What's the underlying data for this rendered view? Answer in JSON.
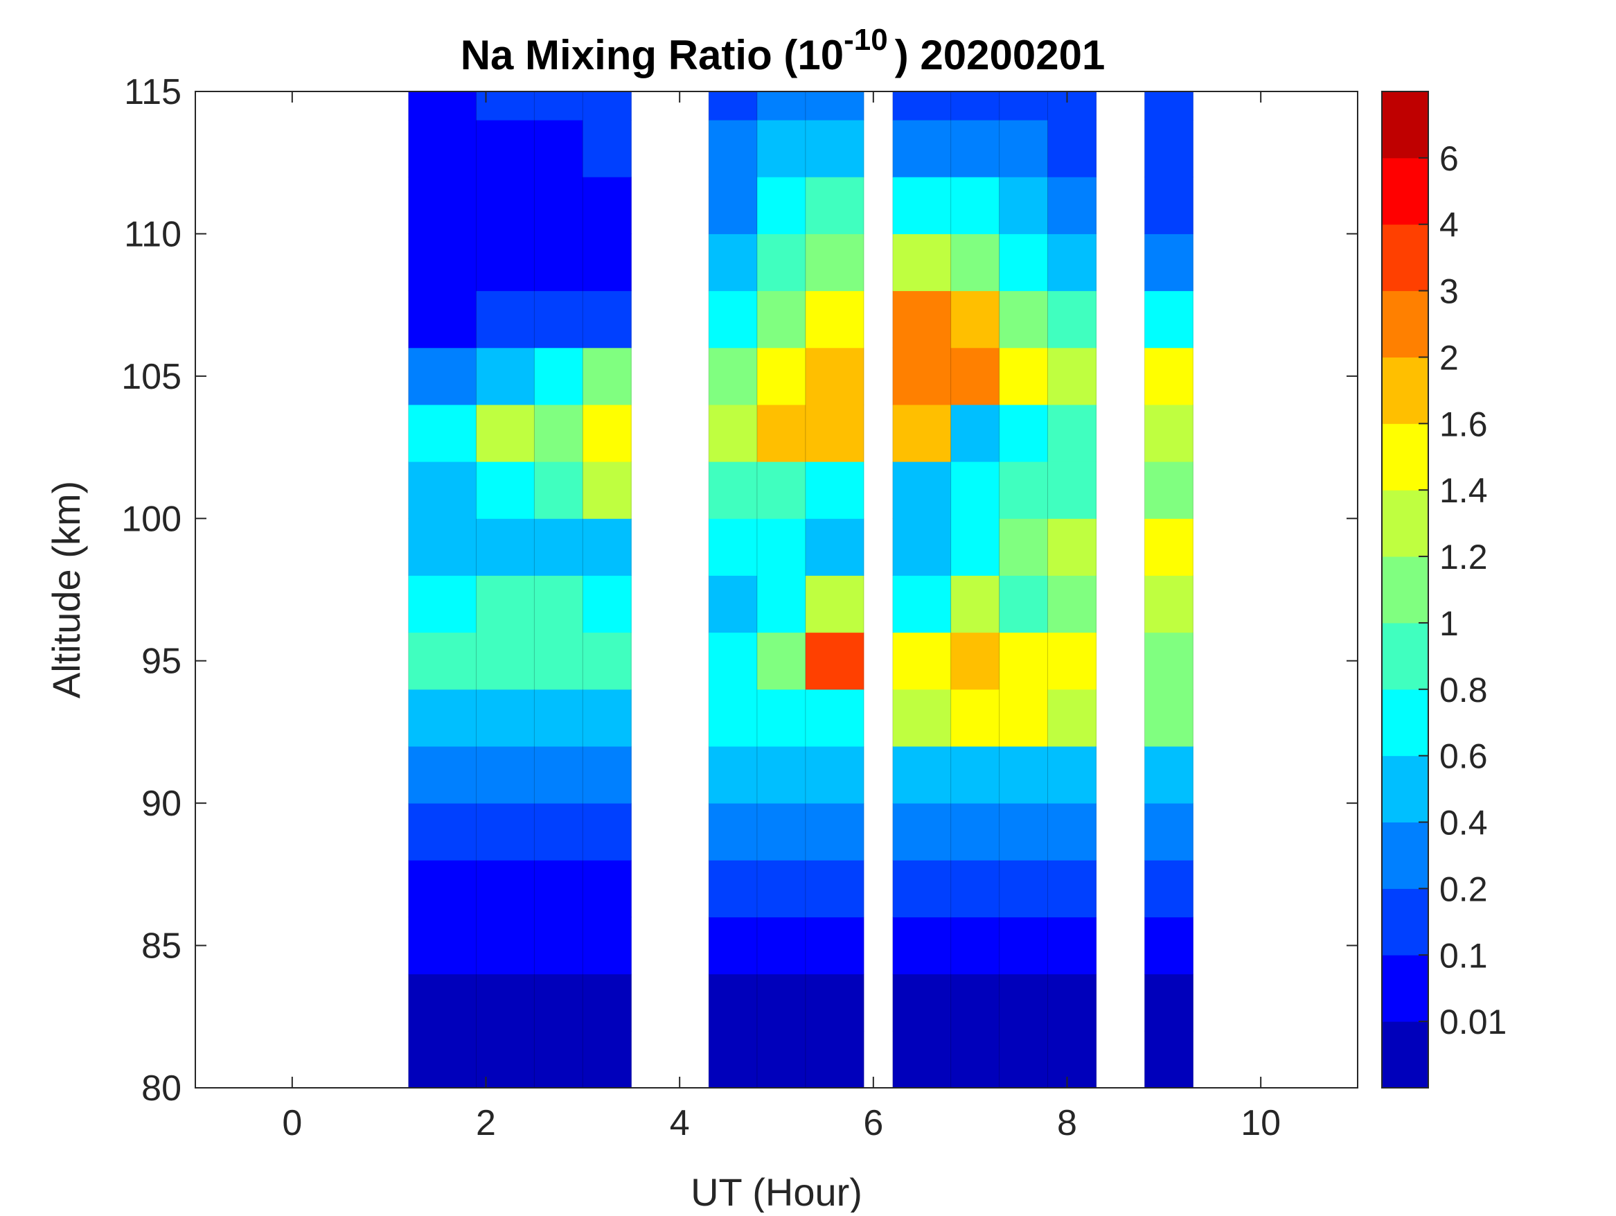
{
  "chart_data": {
    "type": "heatmap",
    "title": "Na Mixing Ratio (10",
    "title_exponent": "-10",
    "title_suffix": ") 20200201",
    "xlabel": "UT (Hour)",
    "ylabel": "Altitude (km)",
    "xlim": [
      -1,
      11
    ],
    "ylim": [
      80,
      115
    ],
    "xticks": [
      "0",
      "2",
      "4",
      "6",
      "8",
      "10"
    ],
    "xtick_values": [
      0,
      2,
      4,
      6,
      8,
      10
    ],
    "yticks": [
      "80",
      "85",
      "90",
      "95",
      "100",
      "105",
      "110",
      "115"
    ],
    "ytick_values": [
      80,
      85,
      90,
      95,
      100,
      105,
      110,
      115
    ],
    "colorbar": {
      "levels": [
        0,
        0.01,
        0.1,
        0.2,
        0.4,
        0.6,
        0.8,
        1,
        1.2,
        1.4,
        1.6,
        2,
        3,
        4,
        6,
        7
      ],
      "tick_labels": [
        "0.01",
        "0.1",
        "0.2",
        "0.4",
        "0.6",
        "0.8",
        "1",
        "1.2",
        "1.4",
        "1.6",
        "2",
        "3",
        "4",
        "6"
      ],
      "colors": [
        "#0000bb",
        "#0000ff",
        "#0040ff",
        "#0080ff",
        "#00bfff",
        "#00ffff",
        "#40ffbf",
        "#80ff80",
        "#bfff40",
        "#ffff00",
        "#ffbf00",
        "#ff8000",
        "#ff4000",
        "#ff0000",
        "#bf0000"
      ]
    },
    "altitudes_km": [
      81,
      83,
      85,
      87,
      89,
      91,
      93,
      95,
      97,
      99,
      101,
      103,
      105,
      107,
      109,
      111,
      113,
      115
    ],
    "time_columns": [
      {
        "t": [
          1.2,
          1.9
        ],
        "values": [
          0.005,
          0.005,
          0.05,
          0.05,
          0.15,
          0.3,
          0.5,
          0.9,
          0.7,
          0.5,
          0.5,
          0.7,
          0.3,
          0.05,
          0.05,
          0.05,
          0.05,
          0.05
        ]
      },
      {
        "t": [
          1.9,
          2.5
        ],
        "values": [
          0.005,
          0.005,
          0.05,
          0.05,
          0.15,
          0.3,
          0.5,
          0.9,
          0.8,
          0.5,
          0.7,
          1.3,
          0.5,
          0.15,
          0.05,
          0.05,
          0.05,
          0.15
        ]
      },
      {
        "t": [
          2.5,
          3.0
        ],
        "values": [
          0.005,
          0.005,
          0.05,
          0.05,
          0.15,
          0.3,
          0.5,
          0.9,
          0.8,
          0.5,
          0.9,
          1.1,
          0.7,
          0.15,
          0.05,
          0.05,
          0.05,
          0.15
        ]
      },
      {
        "t": [
          3.0,
          3.5
        ],
        "values": [
          0.005,
          0.005,
          0.05,
          0.05,
          0.15,
          0.3,
          0.5,
          0.9,
          0.7,
          0.5,
          1.3,
          1.5,
          1.1,
          0.15,
          0.05,
          0.05,
          0.15,
          0.15
        ]
      },
      {
        "t": [
          4.3,
          4.8
        ],
        "values": [
          0.005,
          0.005,
          0.05,
          0.15,
          0.3,
          0.5,
          0.7,
          0.7,
          0.5,
          0.7,
          0.9,
          1.2,
          1.1,
          0.7,
          0.5,
          0.3,
          0.3,
          0.15
        ]
      },
      {
        "t": [
          4.8,
          5.3
        ],
        "values": [
          0.005,
          0.005,
          0.05,
          0.15,
          0.3,
          0.5,
          0.7,
          1.1,
          0.7,
          0.7,
          0.9,
          1.8,
          1.5,
          1.1,
          0.9,
          0.7,
          0.5,
          0.3
        ]
      },
      {
        "t": [
          5.3,
          5.9
        ],
        "values": [
          0.005,
          0.005,
          0.05,
          0.15,
          0.3,
          0.5,
          0.7,
          3.5,
          1.3,
          0.5,
          0.7,
          1.8,
          1.8,
          1.5,
          1.1,
          0.9,
          0.5,
          0.3
        ]
      },
      {
        "t": [
          6.2,
          6.8
        ],
        "values": [
          0.005,
          0.005,
          0.05,
          0.15,
          0.3,
          0.5,
          1.2,
          1.5,
          0.7,
          0.5,
          0.5,
          1.8,
          2.5,
          2.5,
          1.3,
          0.7,
          0.3,
          0.15
        ]
      },
      {
        "t": [
          6.8,
          7.3
        ],
        "values": [
          0.005,
          0.005,
          0.05,
          0.15,
          0.3,
          0.5,
          1.5,
          1.8,
          1.2,
          0.7,
          0.7,
          0.5,
          2.5,
          1.8,
          1.1,
          0.7,
          0.3,
          0.15
        ]
      },
      {
        "t": [
          7.3,
          7.8
        ],
        "values": [
          0.005,
          0.005,
          0.05,
          0.15,
          0.3,
          0.5,
          1.5,
          1.5,
          0.9,
          1.1,
          0.9,
          0.7,
          1.4,
          1.1,
          0.7,
          0.5,
          0.3,
          0.15
        ]
      },
      {
        "t": [
          7.8,
          8.3
        ],
        "values": [
          0.005,
          0.005,
          0.05,
          0.15,
          0.3,
          0.5,
          1.2,
          1.5,
          1.1,
          1.3,
          0.9,
          0.9,
          1.2,
          0.9,
          0.5,
          0.3,
          0.15,
          0.15
        ]
      },
      {
        "t": [
          8.8,
          9.3
        ],
        "values": [
          0.005,
          0.005,
          0.05,
          0.15,
          0.3,
          0.5,
          1.0,
          1.1,
          1.3,
          1.5,
          1.0,
          1.3,
          1.5,
          0.7,
          0.3,
          0.15,
          0.15,
          0.15
        ]
      }
    ]
  }
}
